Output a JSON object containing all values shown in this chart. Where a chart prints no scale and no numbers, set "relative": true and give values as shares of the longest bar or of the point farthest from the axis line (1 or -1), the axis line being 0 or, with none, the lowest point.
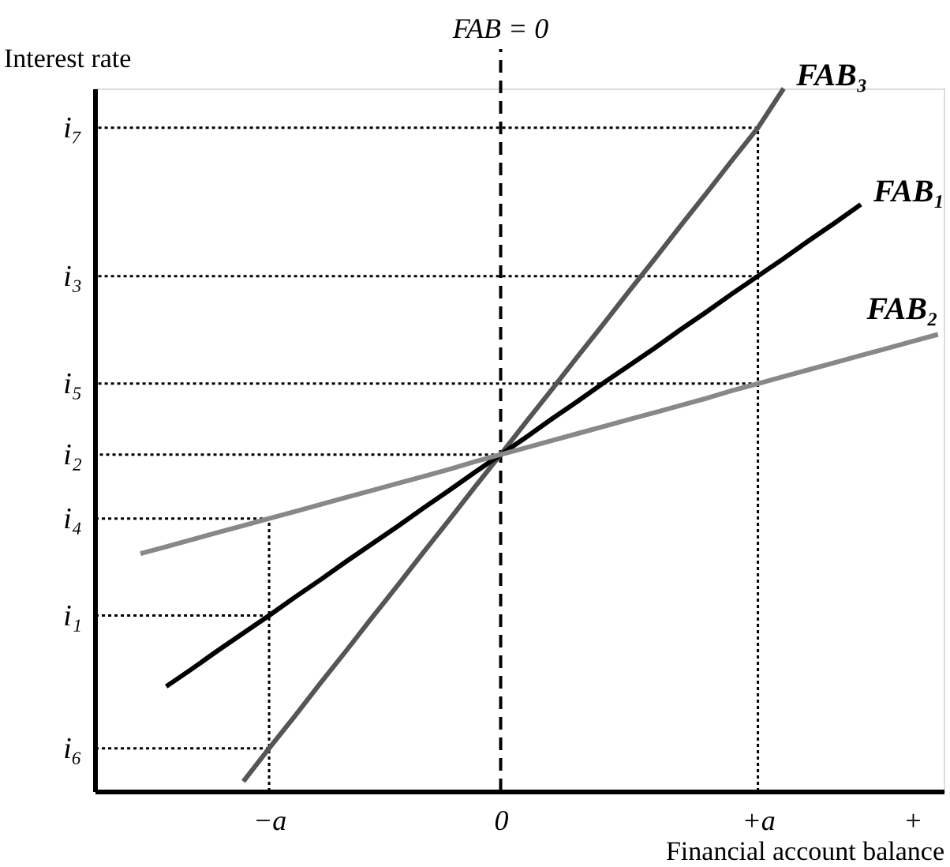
{
  "chart_data": {
    "type": "line",
    "relative": true,
    "ylabel": "Interest rate",
    "xlabel": "Financial account balance",
    "categories": [
      null,
      null,
      null,
      null,
      null,
      "−a",
      null,
      null,
      null,
      null,
      null,
      null,
      null,
      null,
      "0",
      null,
      null,
      null,
      null,
      null,
      null,
      null,
      null,
      null,
      "+a",
      null,
      null,
      null,
      null,
      null,
      "+",
      null
    ],
    "series": [
      {
        "name": "FAB₃",
        "color": "#555555",
        "values": [
          null,
          null,
          null,
          null,
          0.014,
          0.061,
          0.107,
          0.154,
          0.2,
          0.247,
          0.293,
          0.34,
          0.386,
          0.433,
          0.479,
          0.526,
          0.572,
          0.619,
          0.665,
          0.712,
          0.758,
          0.805,
          0.851,
          0.898,
          0.944,
          1.0,
          null,
          null,
          null,
          null,
          null,
          null
        ]
      },
      {
        "name": "FAB₁",
        "color": "#000000",
        "values": [
          null,
          0.149,
          0.174,
          0.2,
          0.225,
          0.25,
          0.276,
          0.301,
          0.327,
          0.352,
          0.377,
          0.403,
          0.428,
          0.454,
          0.479,
          0.504,
          0.53,
          0.555,
          0.581,
          0.606,
          0.631,
          0.657,
          0.682,
          0.708,
          0.733,
          0.758,
          0.784,
          0.809,
          0.835,
          null,
          null,
          null
        ]
      },
      {
        "name": "FAB₂",
        "color": "#888888",
        "values": [
          0.338,
          0.348,
          0.358,
          0.368,
          0.378,
          0.388,
          0.398,
          0.408,
          0.418,
          0.428,
          0.438,
          0.448,
          0.458,
          0.469,
          0.479,
          0.489,
          0.499,
          0.509,
          0.519,
          0.529,
          0.539,
          0.549,
          0.559,
          0.57,
          0.58,
          0.59,
          0.6,
          0.61,
          0.62,
          0.63,
          0.64,
          0.65
        ]
      }
    ],
    "ref_lines": [
      {
        "axis": "x",
        "value": "0",
        "label": "FAB = 0",
        "line_style": "dashed",
        "color": "#000000"
      },
      {
        "axis": "x",
        "value": "−a",
        "label": null,
        "line_style": "dotted",
        "color": "#000000"
      },
      {
        "axis": "x",
        "value": "+a",
        "label": null,
        "line_style": "dotted",
        "color": "#000000"
      },
      {
        "axis": "y",
        "value": 0.944,
        "label": "i₇",
        "line_style": "dotted",
        "color": "#000000"
      },
      {
        "axis": "y",
        "value": 0.733,
        "label": "i₃",
        "line_style": "dotted",
        "color": "#000000"
      },
      {
        "axis": "y",
        "value": 0.58,
        "label": "i₅",
        "line_style": "dotted",
        "color": "#000000"
      },
      {
        "axis": "y",
        "value": 0.479,
        "label": "i₂",
        "line_style": "dotted",
        "color": "#000000"
      },
      {
        "axis": "y",
        "value": 0.388,
        "label": "i₄",
        "line_style": "dotted",
        "color": "#000000"
      },
      {
        "axis": "y",
        "value": 0.25,
        "label": "i₁",
        "line_style": "dotted",
        "color": "#000000"
      },
      {
        "axis": "y",
        "value": 0.061,
        "label": "i₆",
        "line_style": "dotted",
        "color": "#000000"
      }
    ],
    "marker": "none",
    "line_style": "solid"
  }
}
